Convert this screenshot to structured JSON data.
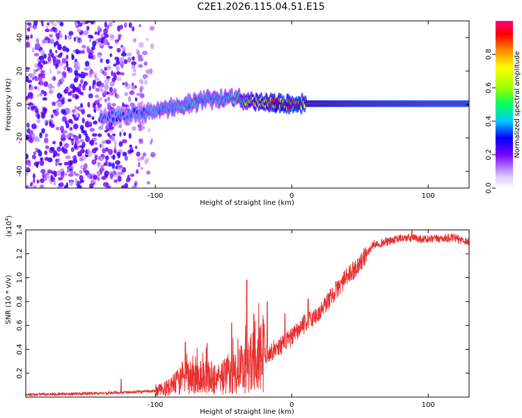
{
  "page_title": "C2E1.2026.115.04.51.E15",
  "chart_data": [
    {
      "type": "heatmap",
      "title": "C2E1.2026.115.04.51.E15",
      "xlabel": "Height of straight line (km)",
      "ylabel": "Frequency (Hz)",
      "xlim": [
        -195,
        130
      ],
      "ylim": [
        -50,
        50
      ],
      "x_ticks": [
        -100,
        0,
        100
      ],
      "x_tick_labels": [
        "-100",
        "0",
        "100"
      ],
      "y_ticks": [
        -40,
        -20,
        0,
        20,
        40
      ],
      "y_tick_labels": [
        "-40",
        "-20",
        "0",
        "20",
        "40"
      ],
      "colorbar": {
        "label": "Normalized spectral amplitude",
        "range": [
          0,
          1
        ],
        "ticks": [
          0.0,
          0.2,
          0.4,
          0.6,
          0.8
        ],
        "tick_labels": [
          "0.0",
          "0.2",
          "0.4",
          "0.6",
          "0.8"
        ]
      },
      "ridge": {
        "x": [
          -140,
          -120,
          -100,
          -80,
          -60,
          -40,
          -30,
          -20,
          -10,
          0,
          10,
          50,
          100,
          130
        ],
        "y": [
          -8,
          -6,
          -4,
          0,
          3,
          4,
          2,
          1,
          1,
          0,
          0.5,
          0.5,
          0.5,
          0.5
        ],
        "amplitude": [
          0.35,
          0.38,
          0.42,
          0.45,
          0.45,
          0.5,
          0.7,
          0.8,
          0.85,
          0.9,
          0.9,
          0.95,
          0.98,
          0.98
        ]
      },
      "noise_region_x": [
        -195,
        -100
      ]
    },
    {
      "type": "line",
      "xlabel": "Height of straight line (km)",
      "ylabel": "SNR (10 * v/v)",
      "y_exponent_label": "(x10",
      "y_exponent": "4",
      "xlim": [
        -195,
        130
      ],
      "ylim": [
        0,
        1.4
      ],
      "x_ticks": [
        -100,
        0,
        100
      ],
      "x_tick_labels": [
        "-100",
        "0",
        "100"
      ],
      "y_ticks": [
        0.2,
        0.4,
        0.6,
        0.8,
        1.0,
        1.2,
        1.4
      ],
      "y_tick_labels": [
        "0.2",
        "0.4",
        "0.6",
        "0.8",
        "1.0",
        "1.2",
        "1.4"
      ],
      "series": [
        {
          "name": "SNR",
          "color": "#e83030",
          "x": [
            -195,
            -150,
            -120,
            -100,
            -90,
            -80,
            -70,
            -60,
            -50,
            -40,
            -30,
            -20,
            -10,
            0,
            10,
            20,
            30,
            40,
            50,
            60,
            70,
            80,
            90,
            100,
            110,
            120,
            130
          ],
          "values": [
            0.02,
            0.03,
            0.04,
            0.05,
            0.08,
            0.15,
            0.18,
            0.16,
            0.17,
            0.22,
            0.28,
            0.35,
            0.42,
            0.5,
            0.62,
            0.7,
            0.86,
            1.0,
            1.12,
            1.28,
            1.3,
            1.33,
            1.33,
            1.32,
            1.33,
            1.33,
            1.3
          ]
        }
      ],
      "spikes": [
        {
          "x": -125,
          "value": 0.15
        },
        {
          "x": -78,
          "value": 0.46
        },
        {
          "x": -62,
          "value": 0.45
        },
        {
          "x": -44,
          "value": 0.62
        },
        {
          "x": -33,
          "value": 0.98
        },
        {
          "x": -18,
          "value": 0.8
        },
        {
          "x": -5,
          "value": 0.7
        },
        {
          "x": 12,
          "value": 0.82
        },
        {
          "x": 88,
          "value": 1.4
        }
      ]
    }
  ]
}
